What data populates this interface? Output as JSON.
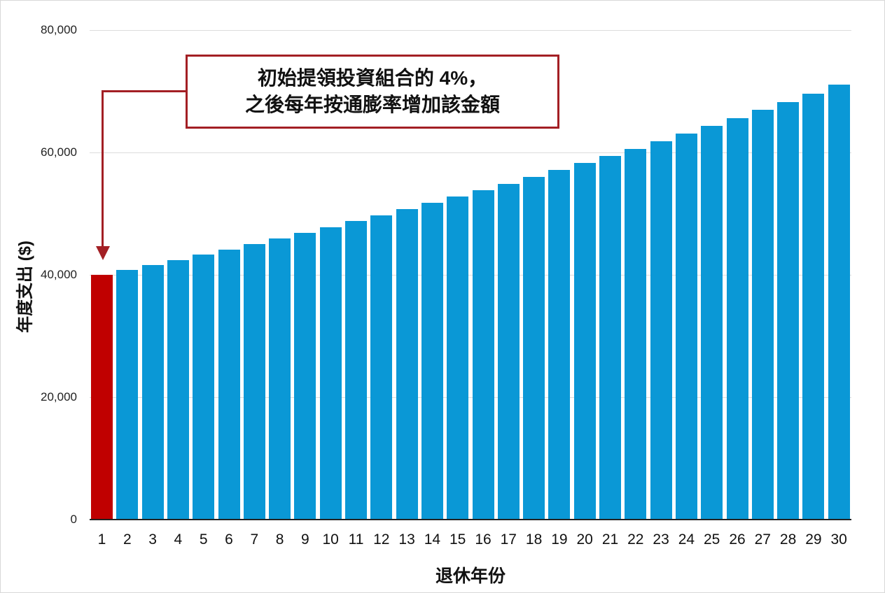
{
  "chart_data": {
    "type": "bar",
    "title": "",
    "xlabel": "退休年份",
    "ylabel": "年度支出 ($)",
    "ylim": [
      0,
      80000
    ],
    "yticks": [
      0,
      20000,
      40000,
      60000,
      80000
    ],
    "ytick_labels": [
      "0",
      "20,000",
      "40,000",
      "60,000",
      "80,000"
    ],
    "grid": true,
    "legend": null,
    "categories": [
      "1",
      "2",
      "3",
      "4",
      "5",
      "6",
      "7",
      "8",
      "9",
      "10",
      "11",
      "12",
      "13",
      "14",
      "15",
      "16",
      "17",
      "18",
      "19",
      "20",
      "21",
      "22",
      "23",
      "24",
      "25",
      "26",
      "27",
      "28",
      "29",
      "30"
    ],
    "values": [
      40000,
      40800,
      41616,
      42448,
      43297,
      44163,
      45046,
      45947,
      46866,
      47804,
      48760,
      49735,
      50730,
      51744,
      52779,
      53835,
      54911,
      56010,
      57130,
      58272,
      59438,
      60627,
      61839,
      63076,
      64337,
      65624,
      66937,
      68275,
      69641,
      71034
    ],
    "highlight": {
      "index": 0,
      "color": "#c00000"
    },
    "bar_color": "#0a98d6",
    "annotation": {
      "lines": [
        "初始提領投資組合的 4%，",
        "之後每年按通膨率增加該金額"
      ],
      "points_to": "1",
      "border_color": "#a31f24"
    }
  },
  "labels": {
    "x_axis": "退休年份",
    "y_axis": "年度支出 ($)",
    "callout_line1": "初始提領投資組合的 4%，",
    "callout_line2": "之後每年按通膨率增加該金額"
  }
}
